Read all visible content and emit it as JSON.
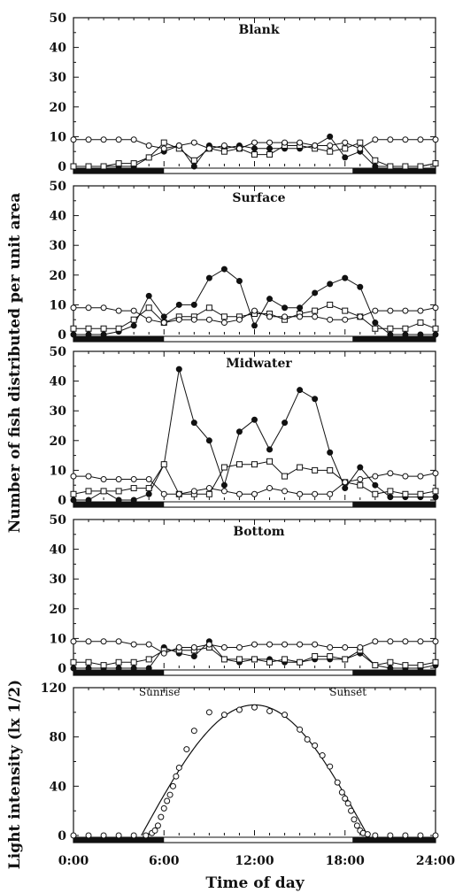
{
  "chart_data": [
    {
      "type": "line",
      "title": "Blank",
      "ylim": [
        0,
        50
      ],
      "yticks": [
        "0",
        "10",
        "20",
        "30",
        "40",
        "50"
      ],
      "x": [
        0,
        1,
        2,
        3,
        4,
        5,
        6,
        7,
        8,
        9,
        10,
        11,
        12,
        13,
        14,
        15,
        16,
        17,
        18,
        19,
        20,
        21,
        22,
        23,
        24
      ],
      "series": [
        {
          "marker": "filled-circle",
          "values": [
            0,
            0,
            0,
            0,
            0,
            3,
            5,
            7,
            0,
            7,
            6,
            7,
            6,
            6,
            6,
            6,
            7,
            10,
            3,
            5,
            0,
            0,
            0,
            0,
            1
          ]
        },
        {
          "marker": "open-square",
          "values": [
            0,
            0,
            0,
            1,
            1,
            3,
            8,
            6,
            2,
            6,
            5,
            6,
            4,
            4,
            7,
            7,
            6,
            5,
            6,
            8,
            2,
            0,
            0,
            0,
            1
          ]
        },
        {
          "marker": "open-circle",
          "values": [
            9,
            9,
            9,
            9,
            9,
            7,
            6,
            7,
            8,
            6,
            7,
            6,
            8,
            8,
            8,
            8,
            7,
            7,
            8,
            6,
            9,
            9,
            9,
            9,
            9
          ]
        }
      ]
    },
    {
      "type": "line",
      "title": "Surface",
      "ylim": [
        0,
        50
      ],
      "yticks": [
        "0",
        "10",
        "20",
        "30",
        "40",
        "50"
      ],
      "x": [
        0,
        1,
        2,
        3,
        4,
        5,
        6,
        7,
        8,
        9,
        10,
        11,
        12,
        13,
        14,
        15,
        16,
        17,
        18,
        19,
        20,
        21,
        22,
        23,
        24
      ],
      "series": [
        {
          "marker": "filled-circle",
          "values": [
            0,
            0,
            0,
            1,
            3,
            13,
            6,
            10,
            10,
            19,
            22,
            18,
            3,
            12,
            9,
            9,
            14,
            17,
            19,
            16,
            4,
            0,
            0,
            0,
            0
          ]
        },
        {
          "marker": "open-square",
          "values": [
            2,
            2,
            2,
            2,
            5,
            9,
            4,
            6,
            6,
            9,
            6,
            6,
            7,
            7,
            5,
            7,
            8,
            10,
            8,
            6,
            2,
            2,
            2,
            4,
            2
          ]
        },
        {
          "marker": "open-circle",
          "values": [
            9,
            9,
            9,
            8,
            8,
            5,
            4,
            5,
            5,
            5,
            4,
            5,
            8,
            6,
            6,
            6,
            6,
            5,
            5,
            6,
            8,
            8,
            8,
            8,
            9
          ]
        }
      ]
    },
    {
      "type": "line",
      "title": "Midwater",
      "ylim": [
        0,
        50
      ],
      "yticks": [
        "0",
        "10",
        "20",
        "30",
        "40",
        "50"
      ],
      "x": [
        0,
        1,
        2,
        3,
        4,
        5,
        6,
        7,
        8,
        9,
        10,
        11,
        12,
        13,
        14,
        15,
        16,
        17,
        18,
        19,
        20,
        21,
        22,
        23,
        24
      ],
      "series": [
        {
          "marker": "filled-circle",
          "values": [
            0,
            0,
            3,
            0,
            0,
            2,
            12,
            44,
            26,
            20,
            5,
            23,
            27,
            17,
            26,
            37,
            34,
            16,
            4,
            11,
            5,
            1,
            1,
            1,
            1
          ]
        },
        {
          "marker": "open-square",
          "values": [
            2,
            3,
            3,
            3,
            4,
            4,
            12,
            2,
            2,
            2,
            11,
            12,
            12,
            13,
            8,
            11,
            10,
            10,
            6,
            5,
            2,
            3,
            2,
            2,
            3
          ]
        },
        {
          "marker": "open-circle",
          "values": [
            8,
            8,
            7,
            7,
            7,
            7,
            2,
            2,
            3,
            4,
            3,
            2,
            2,
            4,
            3,
            2,
            2,
            2,
            6,
            7,
            8,
            9,
            8,
            8,
            9
          ]
        }
      ]
    },
    {
      "type": "line",
      "title": "Bottom",
      "ylim": [
        0,
        50
      ],
      "yticks": [
        "0",
        "10",
        "20",
        "30",
        "40",
        "50"
      ],
      "x": [
        0,
        1,
        2,
        3,
        4,
        5,
        6,
        7,
        8,
        9,
        10,
        11,
        12,
        13,
        14,
        15,
        16,
        17,
        18,
        19,
        20,
        21,
        22,
        23,
        24
      ],
      "series": [
        {
          "marker": "filled-circle",
          "values": [
            0,
            0,
            0,
            0,
            0,
            0,
            7,
            5,
            4,
            9,
            3,
            2,
            3,
            3,
            2,
            2,
            3,
            3,
            3,
            5,
            1,
            0,
            0,
            0,
            1
          ]
        },
        {
          "marker": "open-square",
          "values": [
            2,
            2,
            1,
            2,
            2,
            3,
            6,
            6,
            6,
            7,
            3,
            3,
            3,
            2,
            3,
            2,
            4,
            4,
            3,
            6,
            1,
            2,
            1,
            1,
            2
          ]
        },
        {
          "marker": "open-circle",
          "values": [
            9,
            9,
            9,
            9,
            8,
            8,
            5,
            7,
            7,
            8,
            7,
            7,
            8,
            8,
            8,
            8,
            8,
            7,
            7,
            7,
            9,
            9,
            9,
            9,
            9
          ]
        }
      ]
    },
    {
      "type": "scatter",
      "title": "",
      "ylabel": "Light intensity (lx 1/2)",
      "ylim": [
        0,
        120
      ],
      "yticks": [
        "0",
        "40",
        "80",
        "120"
      ],
      "xlabel": "Time of day",
      "xlim": [
        0,
        24
      ],
      "xticks": [
        "0:00",
        "6:00",
        "12:00",
        "18:00",
        "24:00"
      ],
      "annotations": {
        "sunrise": "Sunrise",
        "sunset": "Sunset"
      },
      "points": {
        "x": [
          0,
          1,
          2,
          3,
          4,
          4.8,
          5.2,
          5.4,
          5.6,
          5.8,
          6.0,
          6.2,
          6.4,
          6.6,
          6.8,
          7.0,
          7.5,
          8.0,
          9.0,
          10.0,
          11.0,
          12.0,
          13.0,
          14.0,
          15.0,
          15.5,
          16.0,
          16.5,
          17.0,
          17.5,
          17.8,
          18.0,
          18.2,
          18.4,
          18.6,
          18.8,
          19.0,
          19.2,
          19.5,
          20.0,
          21,
          22,
          23,
          24
        ],
        "y": [
          0,
          0,
          0,
          0,
          0,
          0,
          2,
          4,
          8,
          15,
          22,
          28,
          33,
          40,
          48,
          55,
          70,
          85,
          100,
          98,
          102,
          104,
          101,
          98,
          86,
          78,
          73,
          65,
          56,
          43,
          35,
          30,
          26,
          20,
          13,
          8,
          4,
          2,
          1,
          0,
          0,
          0,
          0,
          0
        ]
      },
      "curve": {
        "start": 4.5,
        "peak_x": 12,
        "peak_y": 106,
        "end": 19.5
      }
    }
  ],
  "shared": {
    "ylabel": "Number of fish distributed per unit area",
    "night_bars": [
      [
        0,
        6
      ],
      [
        18.5,
        24
      ]
    ]
  }
}
